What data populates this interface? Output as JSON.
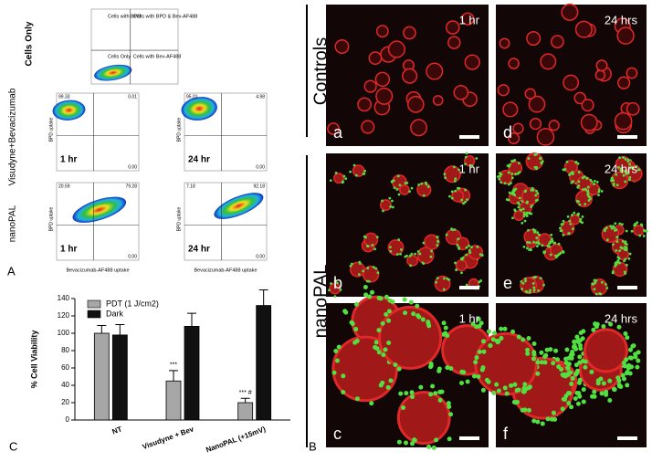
{
  "panel_a": {
    "label": "A",
    "row_labels": [
      "Cells Only",
      "Visudyne+Bevacizumab",
      "nanoPAL"
    ],
    "quadrants": [
      "Cells with BPD",
      "Cells with BPD & Bev-AF488",
      "Cells Only",
      "Cells with Bev-AF488"
    ],
    "x_axis": "Bevacizumab-AF488 uptake",
    "y_axis": "BPD uptake",
    "plots": [
      {
        "time": "1 hr",
        "values": [
          "99.33",
          "0.01",
          "0.00"
        ]
      },
      {
        "time": "24 hr",
        "values": [
          "95.01",
          "4.98",
          "0.00"
        ]
      },
      {
        "time": "1 hr",
        "values": [
          "20.59",
          "79.28",
          "0.00"
        ]
      },
      {
        "time": "24 hr",
        "values": [
          "7.18",
          "92.18",
          "0.00"
        ]
      }
    ]
  },
  "panel_b": {
    "label": "B",
    "rows": [
      "Controls",
      "nanoPAL"
    ],
    "times": [
      "1 hr",
      "24 hrs"
    ],
    "letters": [
      "a",
      "d",
      "b",
      "e",
      "c",
      "f"
    ]
  },
  "panel_c": {
    "label": "C"
  },
  "chart_data": {
    "type": "bar",
    "ylabel": "% Cell Viability",
    "categories": [
      "NT",
      "Visudyne + Bev",
      "NanoPAL (+15mV)"
    ],
    "series": [
      {
        "name": "PDT (1 J/cm2)",
        "color": "#a6a6a6",
        "values": [
          100,
          45,
          20
        ],
        "errors": [
          9,
          12,
          5
        ]
      },
      {
        "name": "Dark",
        "color": "#111111",
        "values": [
          98,
          108,
          132
        ],
        "errors": [
          12,
          15,
          18
        ]
      }
    ],
    "annotations": [
      "***",
      "*** #"
    ],
    "ylim": [
      0,
      140
    ],
    "yticks": [
      0,
      20,
      40,
      60,
      80,
      100,
      120,
      140
    ]
  }
}
